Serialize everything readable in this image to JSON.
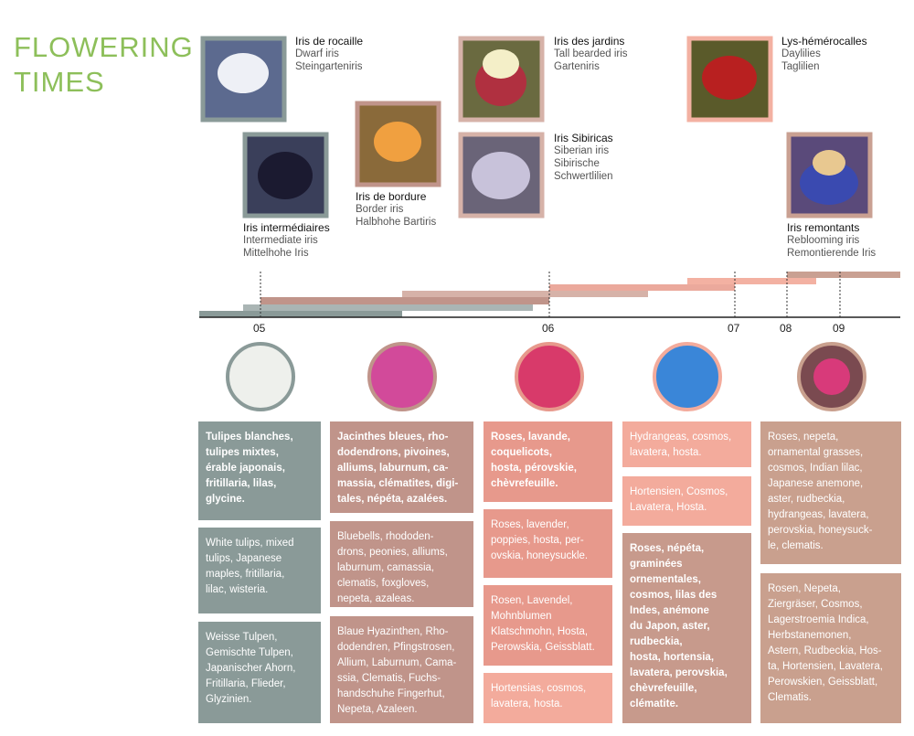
{
  "title": {
    "lines": [
      "FLOWERING",
      "TIMES"
    ]
  },
  "irises": [
    {
      "lines": [
        "Iris de rocaille",
        "Dwarf iris",
        "Steingarteniris"
      ]
    },
    {
      "lines": [
        "Iris intermédiaires",
        "Intermediate iris",
        "Mittelhohe Iris"
      ]
    },
    {
      "lines": [
        "Iris de bordure",
        "Border iris",
        "Halbhohe Bartiris"
      ]
    },
    {
      "lines": [
        "Iris des jardins",
        "Tall bearded iris",
        "Garteniris"
      ]
    },
    {
      "lines": [
        "Iris Sibiricas",
        "Siberian iris",
        "Sibirische",
        "Schwertlilien"
      ]
    },
    {
      "lines": [
        "Lys-hémérocalles",
        "Daylilies",
        "Taglilien"
      ]
    },
    {
      "lines": [
        "Iris remontants",
        "Reblooming iris",
        "Remontierende Iris"
      ]
    }
  ],
  "timeline": {
    "ticks": [
      "05",
      "06",
      "07",
      "08",
      "09"
    ]
  },
  "columns": [
    {
      "boxes": [
        {
          "lines": [
            "Tulipes blanches,",
            "tulipes mixtes,",
            "érable japonais,",
            "fritillaria, lilas,",
            "glycine."
          ]
        },
        {
          "lines": [
            "White tulips, mixed",
            "tulips, Japanese",
            "maples, fritillaria,",
            "lilac, wisteria."
          ]
        },
        {
          "lines": [
            "Weisse Tulpen,",
            "Gemischte Tulpen,",
            "Japanischer Ahorn,",
            "Fritillaria, Flieder,",
            "Glyzinien."
          ]
        }
      ]
    },
    {
      "boxes": [
        {
          "lines": [
            "Jacinthes bleues, rho-",
            "dodendrons, pivoines,",
            "alliums, laburnum, ca-",
            "massia, clématites, digi-",
            "tales, népéta, azalées."
          ]
        },
        {
          "lines": [
            "Bluebells, rhododen-",
            "drons, peonies, alliums,",
            "laburnum, camassia,",
            "clematis, foxgloves,",
            "nepeta, azaleas."
          ]
        },
        {
          "lines": [
            "Blaue Hyazinthen, Rho-",
            "dodendren, Pfingstrosen,",
            "Allium, Laburnum, Cama-",
            "ssia, Clematis, Fuchs-",
            "handschuhe Fingerhut,",
            "Nepeta, Azaleen."
          ]
        }
      ]
    },
    {
      "boxes": [
        {
          "lines": [
            "Roses, lavande,",
            "coquelicots,",
            "hosta, pérovskie,",
            "chèvrefeuille."
          ]
        },
        {
          "lines": [
            "Roses, lavender,",
            "poppies, hosta, per-",
            "ovskia, honeysuckle."
          ]
        },
        {
          "lines": [
            "Rosen, Lavendel,",
            "Mohnblumen",
            "Klatschmohn, Hosta,",
            "Perowskia, Geissblatt."
          ]
        },
        {
          "lines": [
            "Hortensias, cosmos,",
            "lavatera, hosta."
          ]
        }
      ]
    },
    {
      "boxes": [
        {
          "lines": [
            "Hydrangeas, cosmos,",
            "lavatera, hosta."
          ]
        },
        {
          "lines": [
            "Hortensien, Cosmos,",
            "Lavatera, Hosta."
          ]
        },
        {
          "lines": [
            "Roses, népéta,",
            "graminées",
            "ornementales,",
            "cosmos, lilas des",
            "Indes, anémone",
            "du Japon, aster,",
            "rudbeckia,",
            "hosta, hortensia,",
            "lavatera, perovskia,",
            "chèvrefeuille,",
            "clématite."
          ]
        }
      ]
    },
    {
      "boxes": [
        {
          "lines": [
            "Roses, nepeta,",
            "ornamental grasses,",
            "cosmos, Indian lilac,",
            "Japanese anemone,",
            "aster, rudbeckia,",
            "hydrangeas, lavatera,",
            "perovskia, honeysuck-",
            "le, clematis."
          ]
        },
        {
          "lines": [
            "Rosen, Nepeta,",
            "Ziergräser, Cosmos,",
            "Lagerstroemia Indica,",
            "Herbstanemonen,",
            "Astern, Rudbeckia, Hos-",
            "ta, Hortensien, Lavatera,",
            "Perowskien, Geissblatt,",
            "Clematis."
          ]
        }
      ]
    }
  ]
}
